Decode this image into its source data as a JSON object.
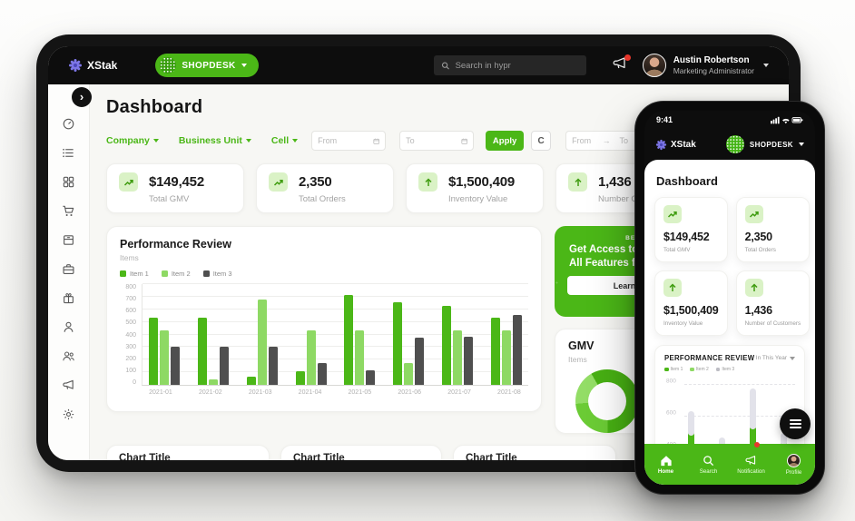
{
  "colors": {
    "green": "#4bb717",
    "green_light": "#8ed964",
    "gray_bar": "#4f4f4f",
    "badge_bg": "#daf2c6",
    "topbar_bg": "#0d0d0d",
    "notification_dot": "#e8372c"
  },
  "tablet": {
    "header": {
      "brand": "XStak",
      "workspace": "SHOPDESK",
      "search_placeholder": "Search in hypr",
      "user": {
        "name": "Austin Robertson",
        "role": "Marketing Administrator"
      }
    },
    "sidebar_icons": [
      "dashboard",
      "orders-list",
      "apps-grid",
      "cart",
      "inventory",
      "briefcase",
      "gift",
      "customer",
      "customers",
      "announcements",
      "settings"
    ],
    "page_title": "Dashboard",
    "filters": {
      "company_label": "Company",
      "business_unit_label": "Business Unit",
      "cell_label": "Cell",
      "from_placeholder": "From",
      "to_placeholder": "To",
      "apply_label": "Apply",
      "refresh_label": "C",
      "range_placeholder": "From     →    To"
    },
    "kpis": [
      {
        "value": "$149,452",
        "label": "Total GMV",
        "icon": "trend-up"
      },
      {
        "value": "2,350",
        "label": "Total Orders",
        "icon": "trend-up"
      },
      {
        "value": "$1,500,409",
        "label": "Inventory Value",
        "icon": "arrow-up"
      },
      {
        "value": "1,436",
        "label": "Number Of Customers",
        "icon": "arrow-up"
      }
    ],
    "performance": {
      "title": "Performance Review",
      "subtitle": "Items",
      "legend": [
        "Item 1",
        "Item 2",
        "Item 3"
      ]
    },
    "promo": {
      "eyebrow": "BECOME A MEMBER",
      "line1": "Get Access to",
      "line2": "All Features for",
      "cta": "Learn More"
    },
    "gmv": {
      "title": "GMV",
      "subtitle": "Items"
    },
    "bottom_cards": [
      {
        "title": "Chart Title"
      },
      {
        "title": "Chart Title"
      },
      {
        "title": "Chart Title"
      }
    ]
  },
  "phone": {
    "status_time": "9:41",
    "header": {
      "brand": "XStak",
      "workspace": "SHOPDESK"
    },
    "page_title": "Dashboard",
    "kpis": [
      {
        "value": "$149,452",
        "label": "Total GMV",
        "icon": "trend-up"
      },
      {
        "value": "2,350",
        "label": "Total Orders",
        "icon": "trend-up"
      },
      {
        "value": "$1,500,409",
        "label": "Inventory Value",
        "icon": "arrow-up"
      },
      {
        "value": "1,436",
        "label": "Number of Customers",
        "icon": "arrow-up"
      }
    ],
    "performance": {
      "title": "PERFORMANCE REVIEW",
      "range_filter": "In This Year",
      "legend": [
        "Item 1",
        "Item 2",
        "Item 3"
      ]
    },
    "nav": [
      {
        "label": "Home",
        "icon": "home",
        "active": true
      },
      {
        "label": "Search",
        "icon": "search",
        "active": false
      },
      {
        "label": "Notification",
        "icon": "megaphone",
        "active": false
      },
      {
        "label": "Profile",
        "icon": "avatar",
        "active": false
      }
    ]
  },
  "chart_data": [
    {
      "id": "tablet-performance",
      "type": "bar",
      "title": "Performance Review",
      "categories": [
        "2021-01",
        "2021-02",
        "2021-03",
        "2021-04",
        "2021-05",
        "2021-06",
        "2021-07",
        "2021-08"
      ],
      "series": [
        {
          "name": "Item 1",
          "color": "#4bb717",
          "values": [
            530,
            530,
            65,
            105,
            715,
            655,
            625,
            530
          ]
        },
        {
          "name": "Item 2",
          "color": "#8ed964",
          "values": [
            430,
            45,
            675,
            430,
            430,
            170,
            430,
            430
          ]
        },
        {
          "name": "Item 3",
          "color": "#4f4f4f",
          "values": [
            305,
            305,
            305,
            175,
            115,
            375,
            380,
            555
          ]
        }
      ],
      "xlabel": "",
      "ylabel": "",
      "ylim": [
        0,
        800
      ],
      "yticks": [
        0,
        100,
        200,
        300,
        400,
        500,
        600,
        700,
        800
      ],
      "grid": true,
      "legend_position": "top-left"
    },
    {
      "id": "gmv-donut",
      "type": "pie",
      "title": "GMV",
      "segments": [
        {
          "label": "segment-1",
          "color": "#47b013",
          "pct": 58
        },
        {
          "label": "segment-2",
          "color": "#6bcb35",
          "pct": 24
        },
        {
          "label": "segment-3",
          "color": "#93dd66",
          "pct": 18
        }
      ]
    },
    {
      "id": "phone-performance",
      "type": "bar",
      "title": "PERFORMANCE REVIEW",
      "ylim": [
        0,
        850
      ],
      "yticks": [
        400,
        600,
        800
      ],
      "columns": [
        {
          "gray": [
            480,
            635
          ],
          "green": [
            0,
            510
          ]
        },
        {
          "gray": [
            340,
            470
          ],
          "green": [
            0,
            200
          ]
        },
        {
          "gray": [
            520,
            775
          ],
          "green": [
            0,
            545
          ]
        },
        {
          "gray": [
            420,
            500
          ],
          "green": [
            0,
            450
          ]
        }
      ]
    }
  ]
}
